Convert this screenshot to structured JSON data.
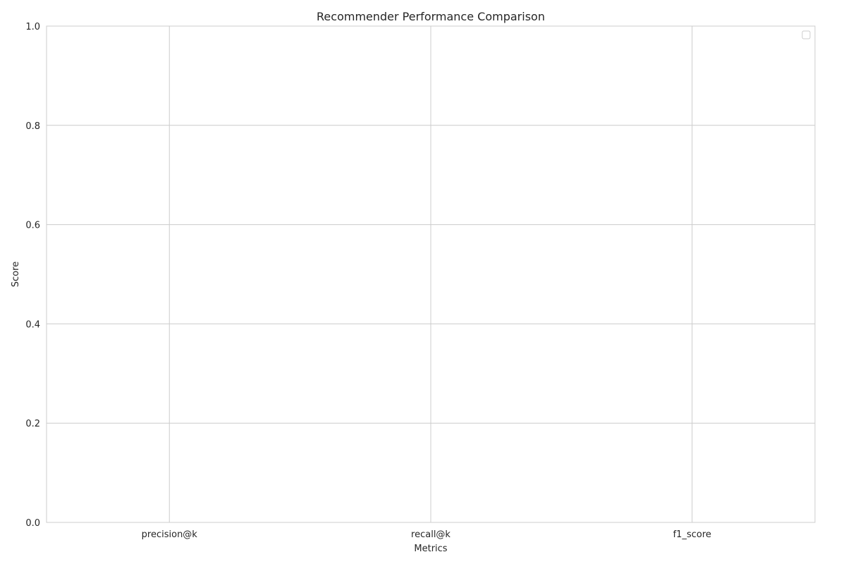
{
  "chart_data": {
    "type": "bar",
    "title": "Recommender Performance Comparison",
    "xlabel": "Metrics",
    "ylabel": "Score",
    "categories": [
      "precision@k",
      "recall@k",
      "f1_score"
    ],
    "series": [],
    "ylim": [
      0,
      1
    ],
    "yticks": [
      "0.0",
      "0.2",
      "0.4",
      "0.6",
      "0.8",
      "1.0"
    ],
    "grid": true,
    "legend": {
      "placement": "top-right",
      "entries": []
    },
    "colors": {
      "background": "#ffffff",
      "grid": "#cccccc",
      "spine": "#cccccc",
      "text": "#262626"
    }
  }
}
